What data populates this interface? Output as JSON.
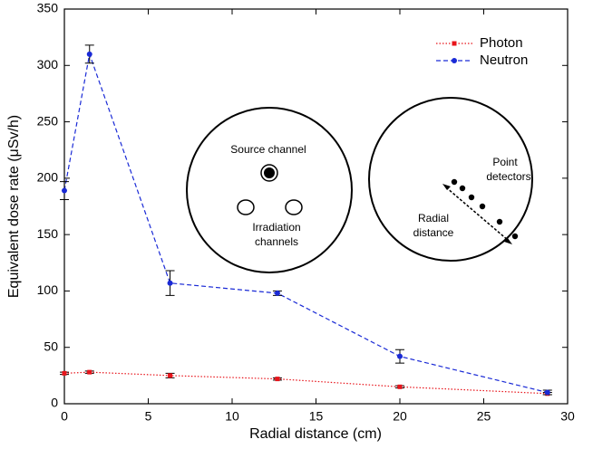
{
  "chart_data": {
    "type": "line",
    "x_label": "Radial distance (cm)",
    "y_label": "Equivalent dose rate (μSv/h)",
    "x": [
      0,
      1.5,
      6.3,
      12.7,
      20,
      28.8
    ],
    "series": [
      {
        "name": "Photon",
        "color": "#e8141b",
        "marker": "square",
        "dash": "dotted",
        "values": [
          27,
          28,
          25,
          22,
          15,
          9
        ],
        "errors": [
          1,
          1,
          2,
          1,
          1,
          1
        ]
      },
      {
        "name": "Neutron",
        "color": "#1a2ad6",
        "marker": "circle",
        "dash": "dashed",
        "values": [
          189,
          310,
          107,
          98,
          42,
          10
        ],
        "errors": [
          8,
          8,
          11,
          2,
          6,
          2
        ]
      }
    ],
    "xlim": [
      0,
      30
    ],
    "xticks": [
      0,
      5,
      10,
      15,
      20,
      25,
      30
    ],
    "ylim": [
      0,
      350
    ],
    "yticks": [
      0,
      50,
      100,
      150,
      200,
      250,
      300,
      350
    ],
    "grid": false,
    "legend_position": "upper right",
    "annotations": [
      "Source channel",
      "Irradiation",
      "channels",
      "Point",
      "detectors",
      "Radial",
      "distance"
    ]
  }
}
